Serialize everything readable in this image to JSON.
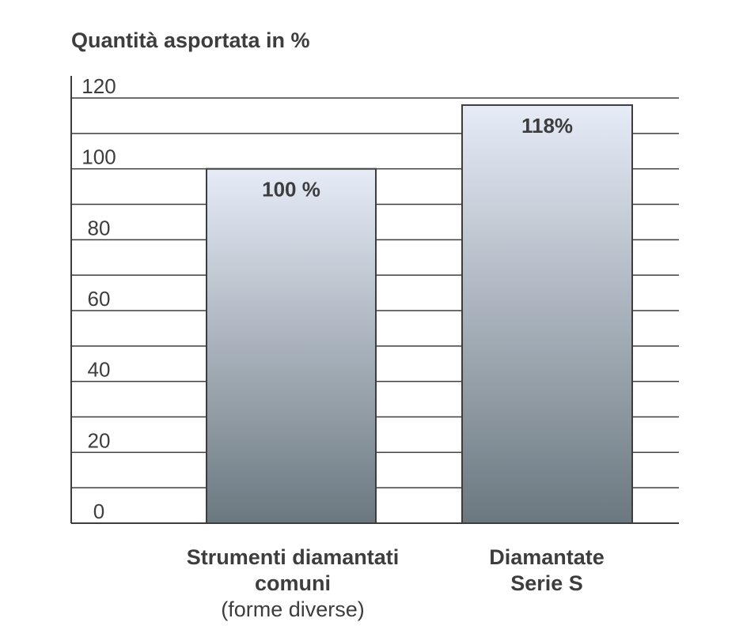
{
  "chart_data": {
    "type": "bar",
    "title": "Quantità asportata in %",
    "categories": [
      "Strumenti diamantati comuni (forme diverse)",
      "Diamantate Serie S"
    ],
    "category_lines": [
      [
        "Strumenti diamantati",
        "comuni",
        "(forme diverse)"
      ],
      [
        "Diamantate",
        "Serie S",
        ""
      ]
    ],
    "values": [
      100,
      118
    ],
    "data_labels": [
      "100 %",
      "118%"
    ],
    "ylim": [
      0,
      120
    ],
    "yticks": [
      "0",
      "20",
      "40",
      "60",
      "80",
      "100",
      "120"
    ],
    "grid": true,
    "xlabel": "",
    "ylabel": ""
  },
  "colors": {
    "bar_top": "#e6ecf7",
    "bar_bottom": "#6b7880",
    "grid": "#3d3d3d",
    "text": "#3d3d3d"
  }
}
